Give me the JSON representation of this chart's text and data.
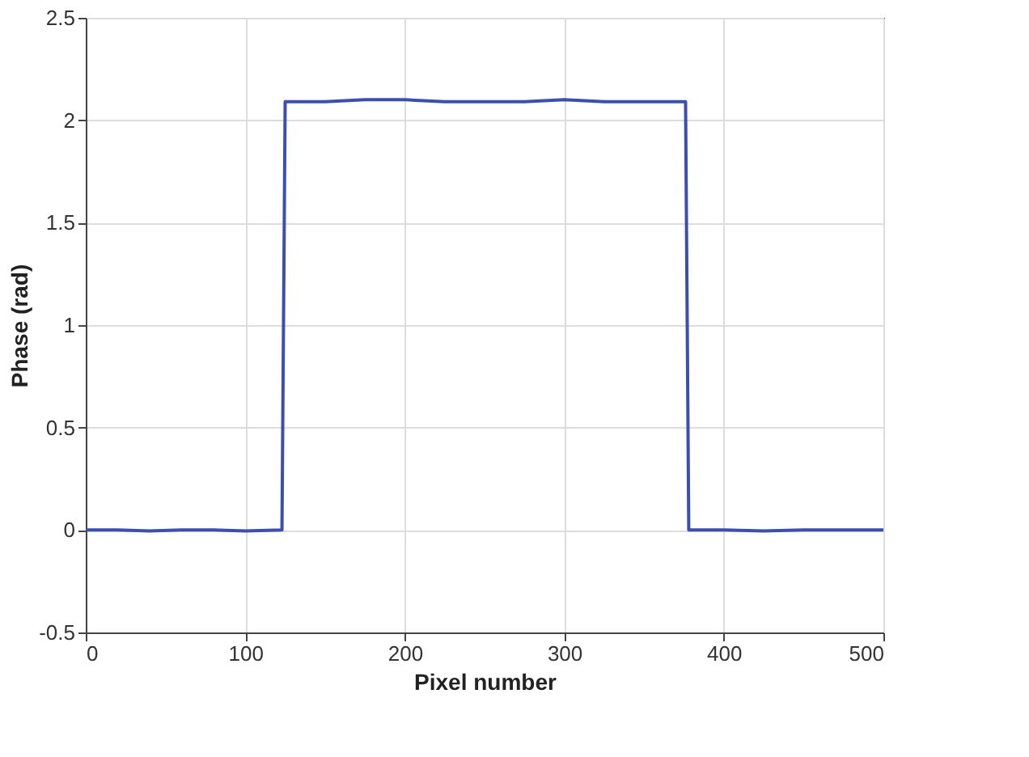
{
  "chart_data": {
    "type": "line",
    "xlabel": "Pixel number",
    "ylabel": "Phase (rad)",
    "x": [
      0,
      20,
      40,
      60,
      80,
      100,
      123,
      125,
      150,
      175,
      200,
      225,
      250,
      275,
      300,
      325,
      350,
      376,
      378,
      400,
      425,
      450,
      475,
      500
    ],
    "series": [
      {
        "color": "#3a4fb0",
        "values": [
          0,
          0,
          -0.005,
          0,
          0,
          -0.005,
          0,
          2.09,
          2.09,
          2.1,
          2.1,
          2.09,
          2.09,
          2.09,
          2.1,
          2.09,
          2.09,
          2.09,
          0,
          0,
          -0.005,
          0,
          0,
          0
        ]
      }
    ],
    "xlim": [
      0,
      500
    ],
    "xticks": [
      0,
      100,
      200,
      300,
      400,
      500
    ],
    "ylim": [
      -0.5,
      2.5
    ],
    "yticks": [
      -0.5,
      0,
      0.5,
      1,
      1.5,
      2,
      2.5
    ],
    "grid": true,
    "marker": "none",
    "line_style": "solid"
  }
}
